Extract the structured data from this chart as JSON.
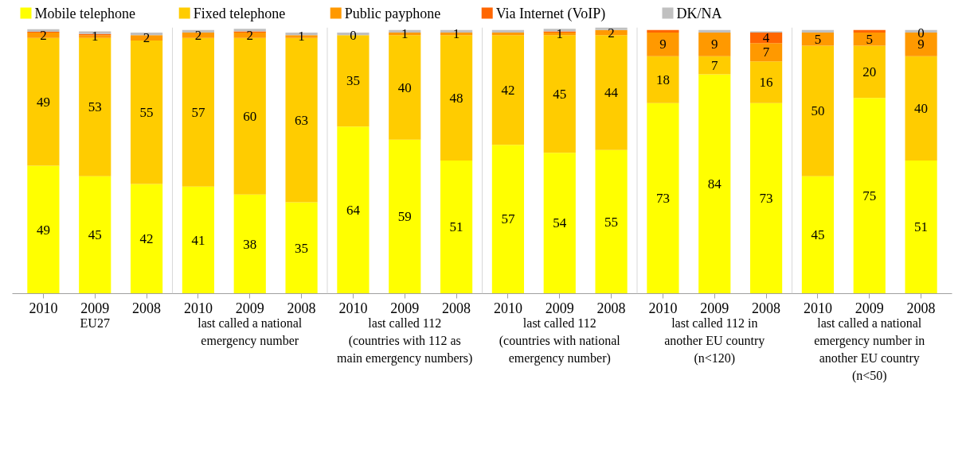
{
  "chart_data": {
    "type": "bar",
    "stacked": true,
    "categories": [
      "2010",
      "2009",
      "2008",
      "2010",
      "2009",
      "2008",
      "2010",
      "2009",
      "2008",
      "2010",
      "2009",
      "2008",
      "2010",
      "2009",
      "2008",
      "2010",
      "2009",
      "2008"
    ],
    "series": [
      {
        "name": "Mobile telephone",
        "color": "#ffff00",
        "values": [
          49,
          45,
          42,
          41,
          38,
          35,
          64,
          59,
          51,
          57,
          54,
          55,
          73,
          84,
          73,
          45,
          75,
          51
        ],
        "value_labels": [
          "49",
          "45",
          "42",
          "41",
          "38",
          "35",
          "64",
          "59",
          "51",
          "57",
          "54",
          "55",
          "73",
          "84",
          "73",
          "45",
          "75",
          "51"
        ]
      },
      {
        "name": "Fixed telephone",
        "color": "#ffcc00",
        "values": [
          49,
          53,
          55,
          57,
          60,
          63,
          35,
          40,
          48,
          42,
          45,
          44,
          18,
          7,
          16,
          50,
          20,
          40
        ],
        "value_labels": [
          "49",
          "53",
          "55",
          "57",
          "60",
          "63",
          "35",
          "40",
          "48",
          "42",
          "45",
          "44",
          "18",
          "7",
          "16",
          "50",
          "20",
          "40"
        ]
      },
      {
        "name": "Public payphone",
        "color": "#ff9900",
        "values": [
          2,
          1,
          2,
          2,
          2,
          1,
          0,
          1,
          1,
          1,
          1,
          2,
          9,
          9,
          7,
          5,
          5,
          9
        ],
        "value_labels": [
          "2",
          "1",
          "2",
          "2",
          "2",
          "1",
          "0",
          "1",
          "1",
          null,
          "1",
          "2",
          "9",
          "9",
          "7",
          "5",
          "5",
          "9"
        ]
      },
      {
        "name": "Via Internet (VoIP)",
        "color": "#ff6600",
        "values": [
          0.3,
          0.5,
          0,
          0,
          0.5,
          0,
          0,
          0,
          0,
          0,
          0.5,
          0,
          1,
          0,
          4,
          0,
          1,
          0
        ],
        "value_labels": [
          null,
          null,
          null,
          null,
          null,
          null,
          null,
          null,
          null,
          null,
          null,
          null,
          null,
          null,
          "4",
          null,
          null,
          "0"
        ]
      },
      {
        "name": "DK/NA",
        "color": "#c0c0c0",
        "values": [
          1,
          1,
          1,
          1,
          1,
          1,
          1,
          1,
          1,
          1,
          1,
          1,
          0,
          1,
          0.5,
          1,
          0,
          1
        ]
      }
    ],
    "ylim": [
      0,
      102
    ],
    "tick_labels": "x",
    "grid": false,
    "legend": "top",
    "annotations": [
      "EU27",
      "last called a national emergency number",
      "last called 112 (countries with 112 as main emergency numbers)",
      "last called 112 (countries with national emergency number)",
      "last called 112 in another EU country (n<120)",
      "last called a national emergency number in another EU country (n<50)"
    ]
  }
}
